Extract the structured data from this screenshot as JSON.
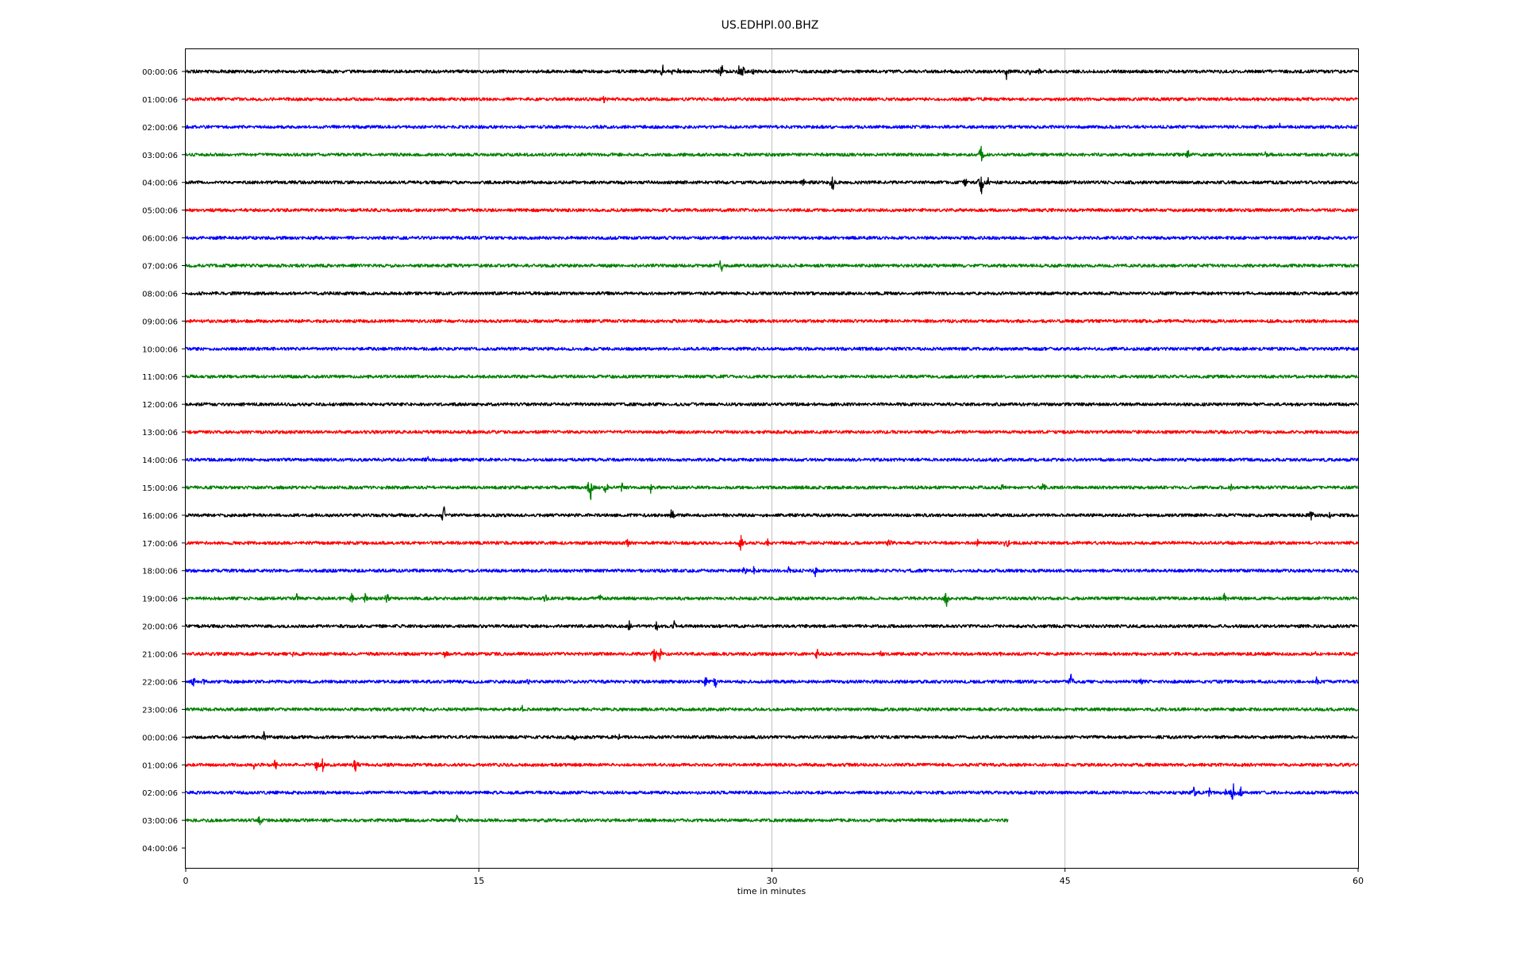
{
  "chart_data": {
    "type": "line",
    "title": "US.EDHPI.00.BHZ",
    "xlabel": "time in minutes",
    "ylabel": "",
    "xlim": [
      0,
      60
    ],
    "x_ticks": [
      0,
      15,
      30,
      45,
      60
    ],
    "grid": "vertical lines at 15, 30, 45",
    "line_colors": [
      "#000000",
      "#ff0000",
      "#0000ff",
      "#008000"
    ],
    "rows": [
      {
        "label": "00:00:06",
        "color": "#000000",
        "end_minute": 60,
        "noise": 2.0,
        "events": [
          {
            "t": 24.4,
            "a": 8
          },
          {
            "t": 24.9,
            "a": 4
          },
          {
            "t": 25.2,
            "a": 3
          },
          {
            "t": 27.4,
            "a": 12
          },
          {
            "t": 28.3,
            "a": 7
          },
          {
            "t": 28.5,
            "a": 10
          },
          {
            "t": 29.0,
            "a": 6
          },
          {
            "t": 42.0,
            "a": 8
          },
          {
            "t": 43.2,
            "a": 4
          },
          {
            "t": 43.7,
            "a": 4
          }
        ]
      },
      {
        "label": "01:00:06",
        "color": "#ff0000",
        "end_minute": 60,
        "noise": 2.0,
        "events": [
          {
            "t": 21.4,
            "a": 6
          },
          {
            "t": 23.0,
            "a": 5
          }
        ]
      },
      {
        "label": "02:00:06",
        "color": "#0000ff",
        "end_minute": 60,
        "noise": 2.0,
        "events": [
          {
            "t": 56.0,
            "a": 5
          }
        ]
      },
      {
        "label": "03:00:06",
        "color": "#008000",
        "end_minute": 60,
        "noise": 2.0,
        "events": [
          {
            "t": 40.7,
            "a": 14
          },
          {
            "t": 51.3,
            "a": 8
          },
          {
            "t": 55.3,
            "a": 7
          }
        ]
      },
      {
        "label": "04:00:06",
        "color": "#000000",
        "end_minute": 60,
        "noise": 2.0,
        "events": [
          {
            "t": 31.6,
            "a": 8
          },
          {
            "t": 33.1,
            "a": 12
          },
          {
            "t": 39.9,
            "a": 7
          },
          {
            "t": 40.7,
            "a": 16
          },
          {
            "t": 41.1,
            "a": 7
          }
        ]
      },
      {
        "label": "05:00:06",
        "color": "#ff0000",
        "end_minute": 60,
        "noise": 2.0,
        "events": []
      },
      {
        "label": "06:00:06",
        "color": "#0000ff",
        "end_minute": 60,
        "noise": 2.0,
        "events": []
      },
      {
        "label": "07:00:06",
        "color": "#008000",
        "end_minute": 60,
        "noise": 2.0,
        "events": [
          {
            "t": 27.4,
            "a": 8
          }
        ]
      },
      {
        "label": "08:00:06",
        "color": "#000000",
        "end_minute": 60,
        "noise": 2.0,
        "events": []
      },
      {
        "label": "09:00:06",
        "color": "#ff0000",
        "end_minute": 60,
        "noise": 2.0,
        "events": []
      },
      {
        "label": "10:00:06",
        "color": "#0000ff",
        "end_minute": 60,
        "noise": 2.0,
        "events": []
      },
      {
        "label": "11:00:06",
        "color": "#008000",
        "end_minute": 60,
        "noise": 2.0,
        "events": []
      },
      {
        "label": "12:00:06",
        "color": "#000000",
        "end_minute": 60,
        "noise": 2.0,
        "events": []
      },
      {
        "label": "13:00:06",
        "color": "#ff0000",
        "end_minute": 60,
        "noise": 2.0,
        "events": []
      },
      {
        "label": "14:00:06",
        "color": "#0000ff",
        "end_minute": 60,
        "noise": 2.0,
        "events": [
          {
            "t": 12.4,
            "a": 7
          },
          {
            "t": 13.6,
            "a": 4
          }
        ]
      },
      {
        "label": "15:00:06",
        "color": "#008000",
        "end_minute": 60,
        "noise": 2.0,
        "events": [
          {
            "t": 20.7,
            "a": 18
          },
          {
            "t": 21.5,
            "a": 9
          },
          {
            "t": 22.3,
            "a": 6
          },
          {
            "t": 23.8,
            "a": 7
          },
          {
            "t": 41.8,
            "a": 6
          },
          {
            "t": 43.9,
            "a": 7
          },
          {
            "t": 53.5,
            "a": 6
          }
        ]
      },
      {
        "label": "16:00:06",
        "color": "#000000",
        "end_minute": 60,
        "noise": 2.0,
        "events": [
          {
            "t": 13.2,
            "a": 11
          },
          {
            "t": 24.9,
            "a": 8
          },
          {
            "t": 57.6,
            "a": 8
          },
          {
            "t": 58.5,
            "a": 5
          }
        ]
      },
      {
        "label": "17:00:06",
        "color": "#ff0000",
        "end_minute": 60,
        "noise": 2.0,
        "events": [
          {
            "t": 22.6,
            "a": 6
          },
          {
            "t": 28.4,
            "a": 10
          },
          {
            "t": 29.8,
            "a": 5
          },
          {
            "t": 36.0,
            "a": 7
          },
          {
            "t": 40.5,
            "a": 5
          },
          {
            "t": 42.0,
            "a": 11
          }
        ]
      },
      {
        "label": "18:00:06",
        "color": "#0000ff",
        "end_minute": 60,
        "noise": 2.0,
        "events": [
          {
            "t": 28.6,
            "a": 7
          },
          {
            "t": 29.1,
            "a": 8
          },
          {
            "t": 30.9,
            "a": 9
          },
          {
            "t": 32.2,
            "a": 9
          }
        ]
      },
      {
        "label": "19:00:06",
        "color": "#008000",
        "end_minute": 60,
        "noise": 2.0,
        "events": [
          {
            "t": 5.7,
            "a": 6
          },
          {
            "t": 8.5,
            "a": 8
          },
          {
            "t": 9.2,
            "a": 8
          },
          {
            "t": 10.3,
            "a": 8
          },
          {
            "t": 18.4,
            "a": 7
          },
          {
            "t": 21.2,
            "a": 7
          },
          {
            "t": 38.9,
            "a": 14
          },
          {
            "t": 53.2,
            "a": 10
          }
        ]
      },
      {
        "label": "20:00:06",
        "color": "#000000",
        "end_minute": 60,
        "noise": 2.0,
        "events": [
          {
            "t": 2.9,
            "a": 4
          },
          {
            "t": 22.7,
            "a": 7
          },
          {
            "t": 24.1,
            "a": 7
          },
          {
            "t": 25.0,
            "a": 7
          }
        ]
      },
      {
        "label": "21:00:06",
        "color": "#ff0000",
        "end_minute": 60,
        "noise": 2.0,
        "events": [
          {
            "t": 5.5,
            "a": 4
          },
          {
            "t": 13.3,
            "a": 7
          },
          {
            "t": 24.0,
            "a": 10
          },
          {
            "t": 24.3,
            "a": 8
          },
          {
            "t": 32.3,
            "a": 6
          },
          {
            "t": 35.6,
            "a": 5
          },
          {
            "t": 41.7,
            "a": 4
          },
          {
            "t": 57.8,
            "a": 4
          }
        ]
      },
      {
        "label": "22:00:06",
        "color": "#0000ff",
        "end_minute": 60,
        "noise": 2.0,
        "events": [
          {
            "t": 0.4,
            "a": 7
          },
          {
            "t": 0.9,
            "a": 4
          },
          {
            "t": 17.5,
            "a": 8
          },
          {
            "t": 26.6,
            "a": 7
          },
          {
            "t": 27.1,
            "a": 8
          },
          {
            "t": 45.3,
            "a": 10
          },
          {
            "t": 48.9,
            "a": 5
          },
          {
            "t": 57.9,
            "a": 6
          }
        ]
      },
      {
        "label": "23:00:06",
        "color": "#008000",
        "end_minute": 60,
        "noise": 2.0,
        "events": [
          {
            "t": 12.2,
            "a": 4
          },
          {
            "t": 17.2,
            "a": 6
          }
        ]
      },
      {
        "label": "00:00:06",
        "color": "#000000",
        "end_minute": 60,
        "noise": 2.0,
        "events": [
          {
            "t": 4.0,
            "a": 10
          },
          {
            "t": 19.9,
            "a": 5
          },
          {
            "t": 22.1,
            "a": 10
          }
        ]
      },
      {
        "label": "01:00:06",
        "color": "#ff0000",
        "end_minute": 60,
        "noise": 2.0,
        "events": [
          {
            "t": 2.7,
            "a": 4
          },
          {
            "t": 3.5,
            "a": 5
          },
          {
            "t": 4.6,
            "a": 7
          },
          {
            "t": 6.7,
            "a": 8
          },
          {
            "t": 7.0,
            "a": 10
          },
          {
            "t": 8.7,
            "a": 12
          }
        ]
      },
      {
        "label": "02:00:06",
        "color": "#0000ff",
        "end_minute": 60,
        "noise": 2.0,
        "events": [
          {
            "t": 50.9,
            "a": 6
          },
          {
            "t": 51.6,
            "a": 8
          },
          {
            "t": 52.4,
            "a": 5
          },
          {
            "t": 53.2,
            "a": 5
          },
          {
            "t": 53.6,
            "a": 13
          },
          {
            "t": 54.0,
            "a": 9
          }
        ]
      },
      {
        "label": "03:00:06",
        "color": "#008000",
        "end_minute": 42.1,
        "noise": 2.0,
        "events": [
          {
            "t": 3.8,
            "a": 8
          },
          {
            "t": 13.9,
            "a": 7
          }
        ]
      },
      {
        "label": "04:00:06",
        "color": "#000000",
        "end_minute": 0,
        "noise": 0,
        "events": []
      }
    ]
  }
}
